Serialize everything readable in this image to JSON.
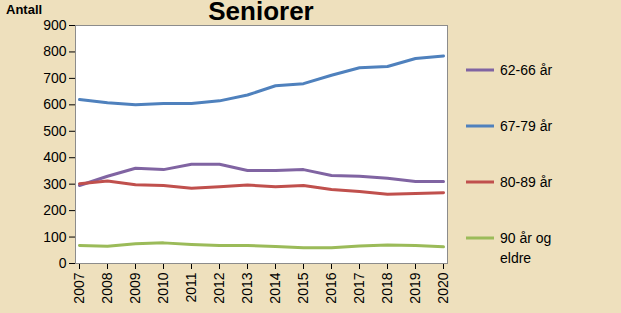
{
  "chart_data": {
    "type": "line",
    "title": "Seniorer",
    "ylabel": "Antall",
    "categories": [
      "2007",
      "2008",
      "2009",
      "2010",
      "2011",
      "2012",
      "2013",
      "2014",
      "2015",
      "2016",
      "2017",
      "2018",
      "2019",
      "2020"
    ],
    "series": [
      {
        "name": "62-66 år",
        "color": "#8064a2",
        "values": [
          295,
          330,
          360,
          355,
          375,
          375,
          352,
          352,
          355,
          333,
          330,
          322,
          310,
          310
        ]
      },
      {
        "name": "67-79 år",
        "color": "#4f81bd",
        "values": [
          620,
          608,
          600,
          605,
          605,
          615,
          637,
          672,
          680,
          712,
          740,
          745,
          775,
          785
        ]
      },
      {
        "name": "80-89 år",
        "color": "#c0504d",
        "values": [
          302,
          312,
          298,
          295,
          285,
          290,
          297,
          290,
          295,
          280,
          272,
          262,
          265,
          268
        ]
      },
      {
        "name": "90 år og eldre",
        "color": "#9bbb59",
        "values": [
          68,
          65,
          75,
          78,
          72,
          68,
          68,
          64,
          60,
          60,
          66,
          70,
          68,
          63
        ]
      }
    ],
    "ylim": [
      0,
      900
    ],
    "yticks": [
      0,
      100,
      200,
      300,
      400,
      500,
      600,
      700,
      800,
      900
    ],
    "grid": false,
    "legend": "right"
  }
}
